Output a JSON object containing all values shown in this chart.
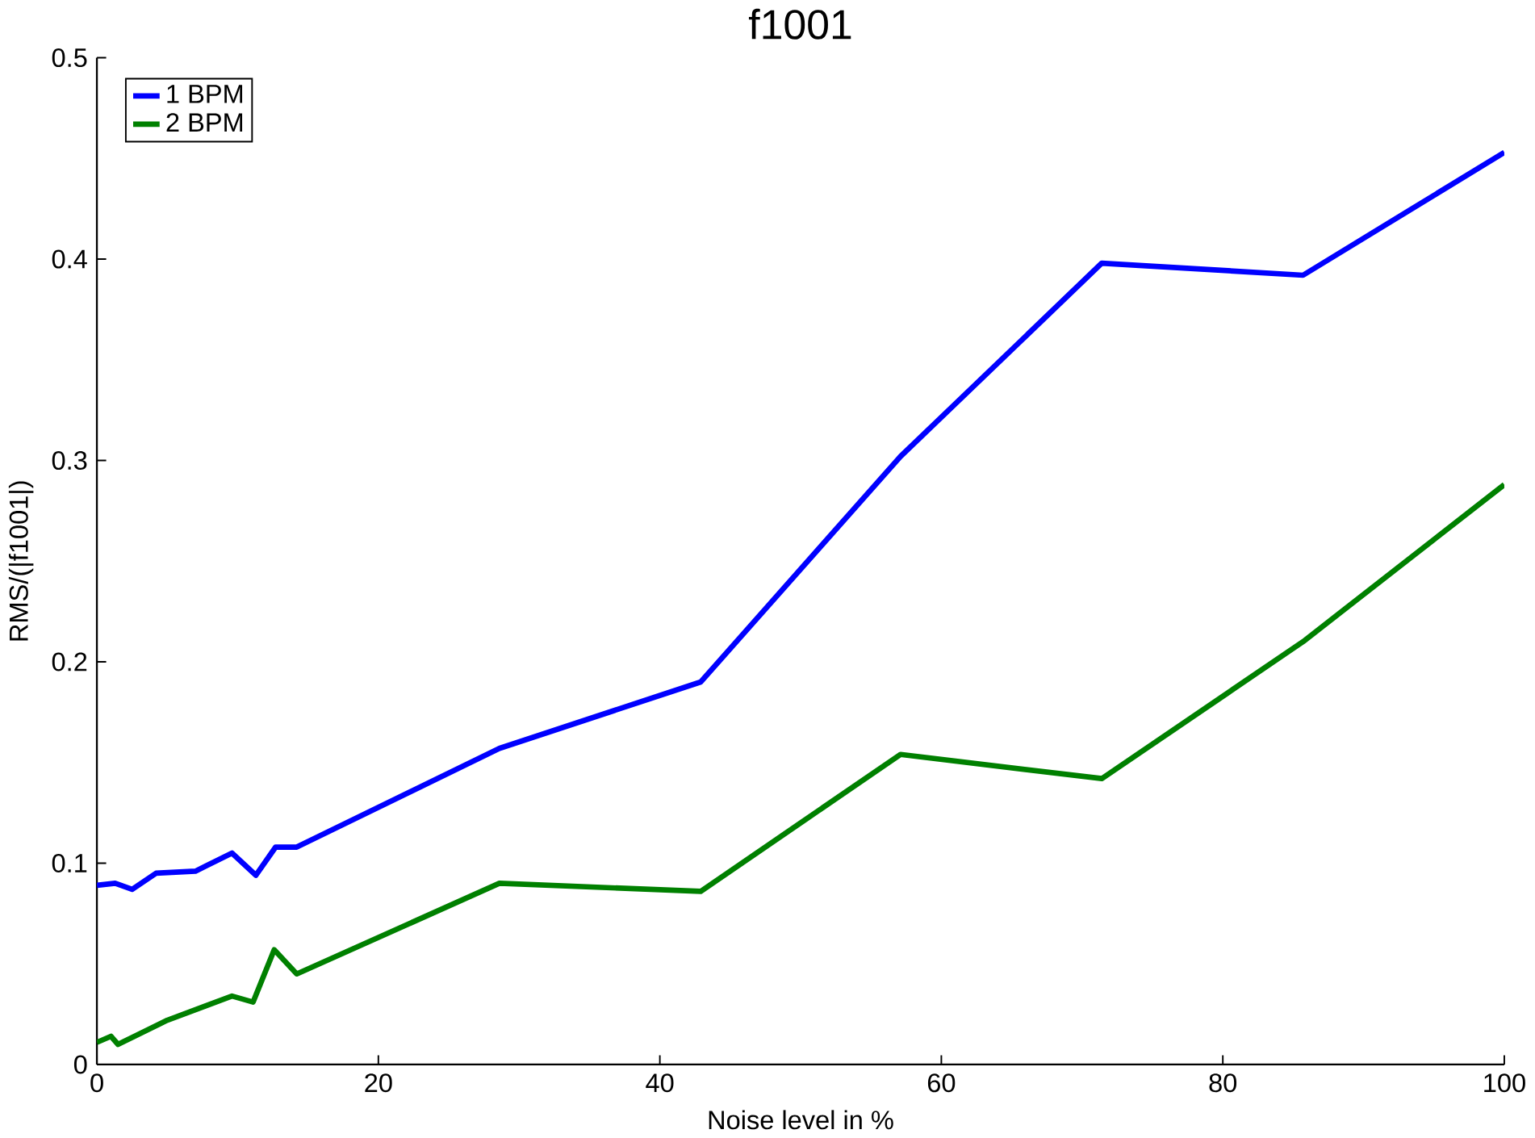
{
  "chart_data": {
    "type": "line",
    "title": "f1001",
    "xlabel": "Noise level in %",
    "ylabel": "RMS/(|f1001|)",
    "xlim": [
      0,
      100
    ],
    "ylim": [
      0,
      0.5
    ],
    "xticks": [
      0,
      20,
      40,
      60,
      80,
      100
    ],
    "yticks": [
      0,
      0.1,
      0.2,
      0.3,
      0.4,
      0.5
    ],
    "grid": false,
    "legend": "top left",
    "marker": "none",
    "line_style": "solid",
    "series": [
      {
        "name": "1 BPM",
        "color": "#0000ff",
        "x": [
          0,
          1.3,
          2.5,
          4.2,
          7,
          9.6,
          11.3,
          12.7,
          14.2,
          28.6,
          42.9,
          57.1,
          71.4,
          85.7,
          100
        ],
        "values": [
          0.089,
          0.09,
          0.087,
          0.095,
          0.096,
          0.105,
          0.094,
          0.108,
          0.108,
          0.157,
          0.19,
          0.302,
          0.398,
          0.392,
          0.453
        ]
      },
      {
        "name": "2 BPM",
        "color": "#008000",
        "x": [
          0,
          1,
          1.5,
          5,
          9.6,
          11.1,
          12.6,
          14.2,
          28.6,
          42.9,
          57.1,
          71.4,
          85.7,
          100
        ],
        "values": [
          0.011,
          0.014,
          0.01,
          0.022,
          0.034,
          0.031,
          0.057,
          0.045,
          0.09,
          0.086,
          0.154,
          0.142,
          0.21,
          0.288
        ]
      }
    ]
  }
}
